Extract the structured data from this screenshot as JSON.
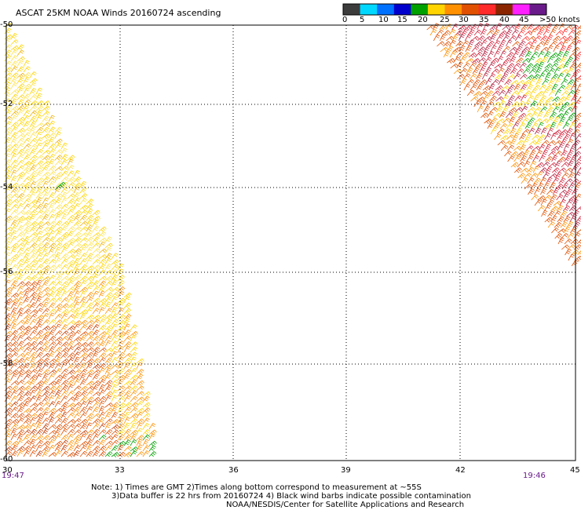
{
  "title": "ASCAT 25KM NOAA Winds 20160724 ascending",
  "colorbar": {
    "ticks": [
      "0",
      "5",
      "10",
      "15",
      "20",
      "25",
      "30",
      "35",
      "40",
      "45",
      ">50 knots"
    ],
    "colors": [
      "#3c3c3c",
      "#00d8ff",
      "#0070ff",
      "#0000cc",
      "#00a000",
      "#ffd400",
      "#ff9000",
      "#e05000",
      "#ff2a2a",
      "#8b2500",
      "#ff20ff",
      "#6a1a8a"
    ]
  },
  "chart_data": {
    "type": "map",
    "x_ticks": [
      "30",
      "33",
      "36",
      "39",
      "42",
      "45"
    ],
    "y_ticks": [
      "-50",
      "-52",
      "-54",
      "-56",
      "-58",
      "-60"
    ],
    "lon_range": [
      30,
      45
    ],
    "lat_range": [
      -60,
      -50
    ],
    "grid": true
  },
  "times": {
    "left": "19:47",
    "right": "19:46"
  },
  "notes": {
    "line1": "Note: 1) Times are GMT 2)Times along bottom correspond to measurement at ~55S",
    "line2": "3)Data buffer is 22 hrs from 20160724 4) Black wind barbs indicate possible contamination",
    "line3": "NOAA/NESDIS/Center for Satellite Applications and Research"
  }
}
